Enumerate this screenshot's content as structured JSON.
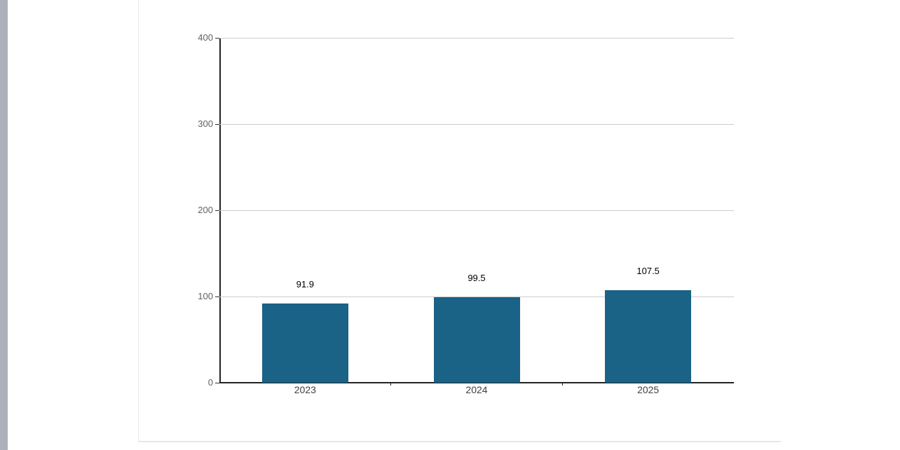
{
  "page": {
    "background_color": "#ffffff",
    "scroll_strip_color": "#abb0bb",
    "card_border_color": "#e8e8e8"
  },
  "chart_data": {
    "type": "bar",
    "title": "",
    "xlabel": "",
    "ylabel": "",
    "categories": [
      "2023",
      "2024",
      "2025"
    ],
    "values": [
      91.9,
      99.5,
      107.5
    ],
    "value_labels": [
      "91.9",
      "99.5",
      "107.5"
    ],
    "y_ticks": [
      0,
      100,
      200,
      300,
      400
    ],
    "ylim": [
      0,
      400
    ],
    "grid": true,
    "legend": false,
    "bar_color": "#1a6286",
    "gridline_color": "#cccccc",
    "axis_color": "#222222",
    "y_tick_label_color": "#616161",
    "x_label_color": "#404040",
    "value_label_color": "#000000"
  }
}
